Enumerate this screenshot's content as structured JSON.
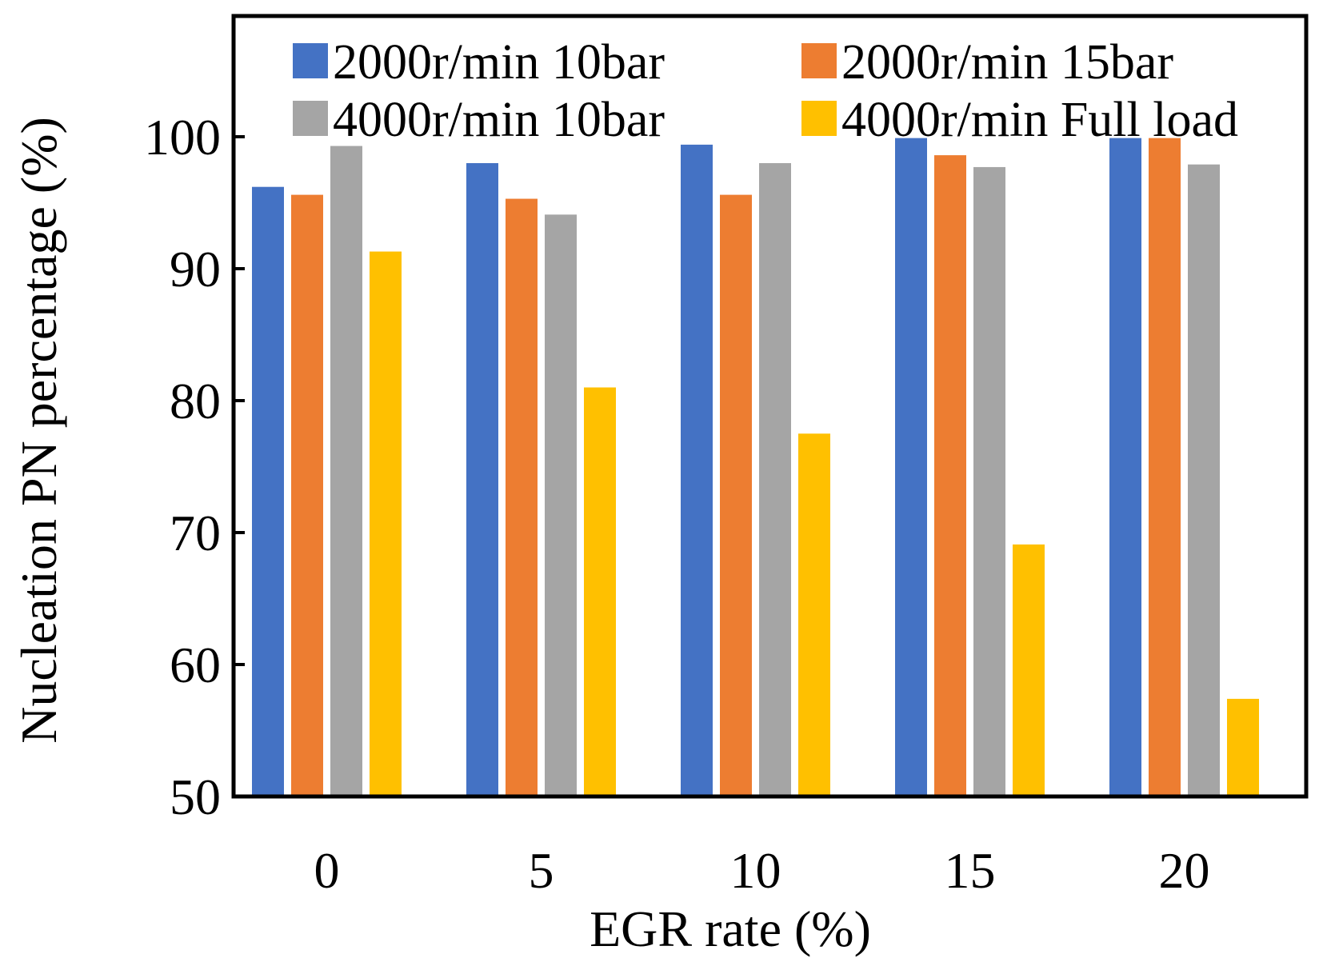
{
  "chart_data": {
    "type": "bar",
    "title": "",
    "xlabel": "EGR rate (%)",
    "ylabel": "Nucleation PN percentage (%)",
    "categories": [
      "0",
      "5",
      "10",
      "15",
      "20"
    ],
    "ylim": [
      50,
      110
    ],
    "yticks": [
      50,
      60,
      70,
      80,
      90,
      100
    ],
    "grid": false,
    "legend_position": "top",
    "series": [
      {
        "name": "2000r/min 10bar",
        "color": "#4472C4",
        "values": [
          96.2,
          98.0,
          99.4,
          99.9,
          99.9
        ]
      },
      {
        "name": "2000r/min 15bar",
        "color": "#ED7D31",
        "values": [
          95.6,
          95.3,
          95.6,
          98.6,
          99.9
        ]
      },
      {
        "name": "4000r/min 10bar",
        "color": "#A5A5A5",
        "values": [
          99.3,
          94.1,
          98.0,
          97.7,
          97.9
        ]
      },
      {
        "name": "4000r/min Full load",
        "color": "#FFC000",
        "values": [
          91.3,
          81.0,
          77.5,
          69.1,
          57.4
        ]
      }
    ]
  }
}
